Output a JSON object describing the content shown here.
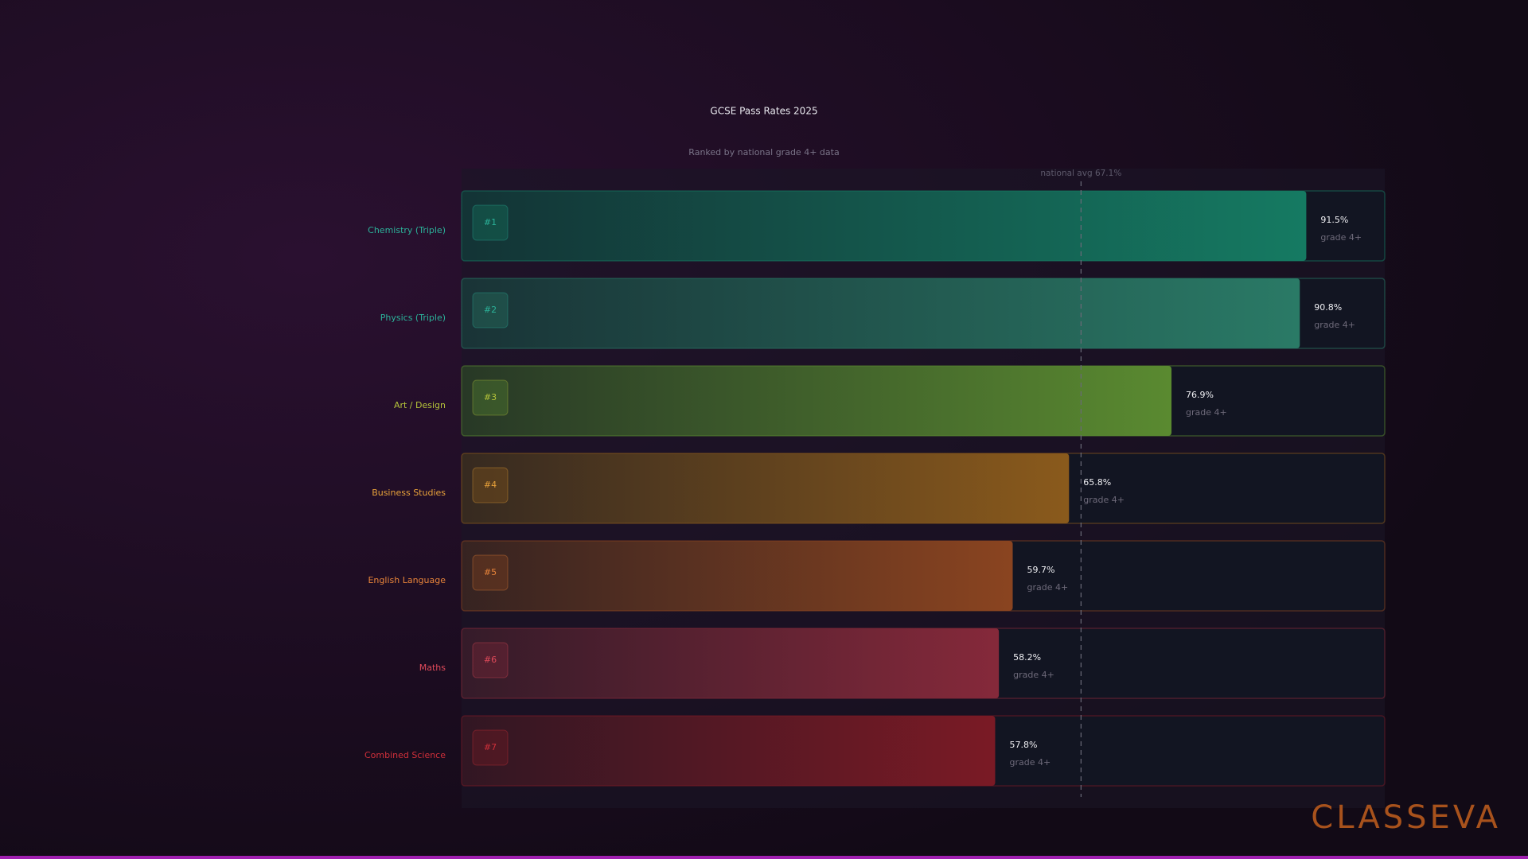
{
  "chart_data": {
    "type": "bar",
    "orientation": "horizontal",
    "title": "GCSE Pass Rates 2025",
    "subtitle": "Ranked by national grade 4+ data",
    "categories": [
      "Chemistry (Triple)",
      "Physics (Triple)",
      "Art / Design",
      "Business Studies",
      "English Language",
      "Maths",
      "Combined Science"
    ],
    "rank_labels": [
      "#1",
      "#2",
      "#3",
      "#4",
      "#5",
      "#6",
      "#7"
    ],
    "values": [
      91.5,
      90.8,
      76.9,
      65.8,
      59.7,
      58.2,
      57.8
    ],
    "value_labels": [
      "91.5%",
      "90.8%",
      "76.9%",
      "65.8%",
      "59.7%",
      "58.2%",
      "57.8%"
    ],
    "value_caption": "grade 4+",
    "colors": [
      "#157a62",
      "#2a7a66",
      "#5a8a30",
      "#8a5a1c",
      "#8a4420",
      "#85293a",
      "#7a1a25"
    ],
    "label_colors": [
      "#2bb39a",
      "#2bb39a",
      "#b5c43a",
      "#e8a23a",
      "#e8843a",
      "#e04a5a",
      "#d0303a"
    ],
    "xlim": [
      0,
      100
    ],
    "reference_line": {
      "value": 67.1,
      "label": "national avg 67.1%"
    },
    "logo": "CLASSEVA"
  }
}
